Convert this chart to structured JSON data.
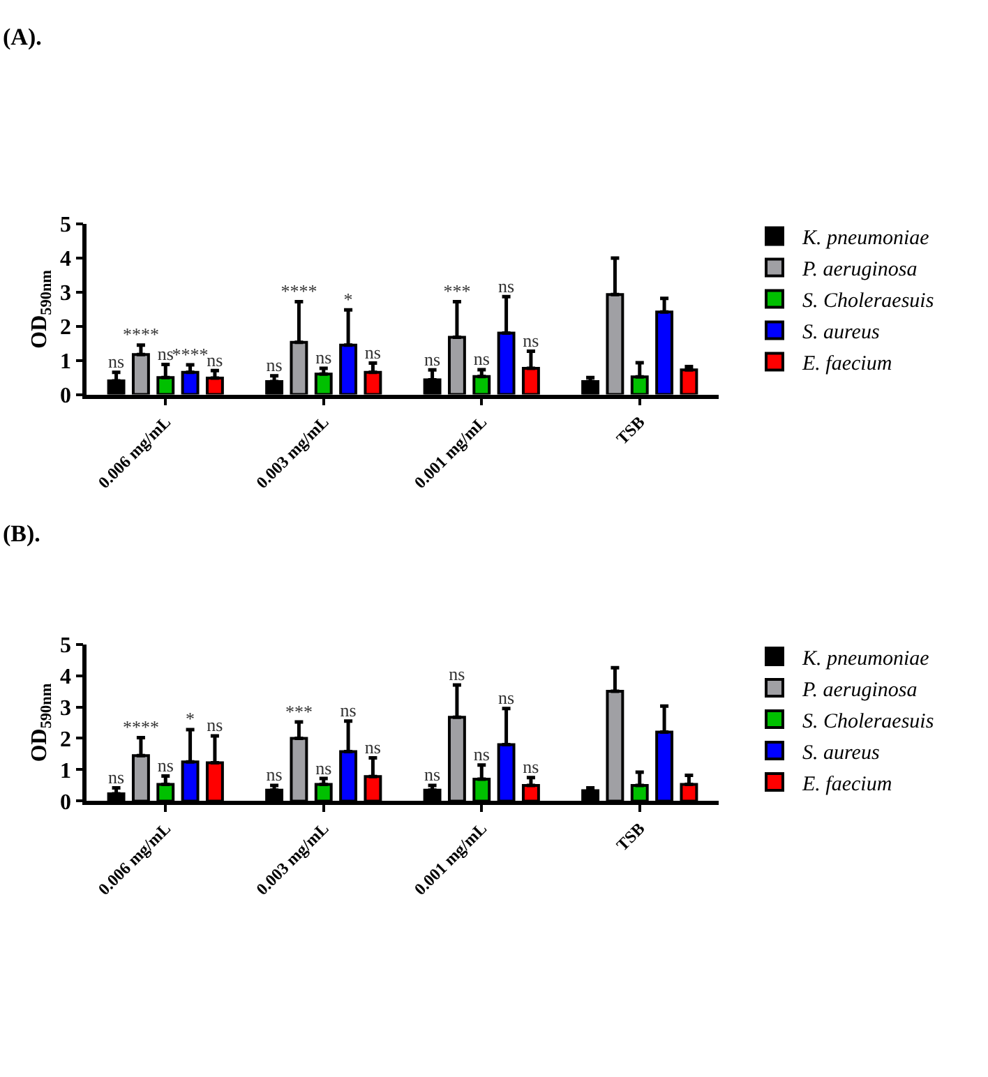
{
  "chart_data": [
    {
      "type": "bar",
      "title": "(A).",
      "ylabel": "OD$_{590nm}$",
      "categories": [
        "0.006 mg/mL",
        "0.003 mg/mL",
        "0.001 mg/mL",
        "TSB"
      ],
      "ylim": [
        0,
        5
      ],
      "yticks": [
        0,
        1,
        2,
        3,
        4,
        5
      ],
      "legend": "top right",
      "series": [
        {
          "name": "K. pneumoniae",
          "color": "#000000",
          "values": [
            0.4,
            0.38,
            0.43,
            0.38
          ],
          "errors": [
            [
              0.4,
              0.65
            ],
            [
              0.38,
              0.55
            ],
            [
              0.43,
              0.72
            ],
            [
              0.38,
              0.5
            ]
          ],
          "value_labels": [
            "ns",
            "ns",
            "ns",
            null
          ]
        },
        {
          "name": "P. aeruginosa",
          "color": "#a0a0a4",
          "values": [
            1.17,
            1.53,
            1.68,
            2.93
          ],
          "errors": [
            [
              1.17,
              1.45
            ],
            [
              1.53,
              2.72
            ],
            [
              1.68,
              2.72
            ],
            [
              2.93,
              4.0
            ]
          ],
          "value_labels": [
            "****",
            "****",
            "***",
            null
          ]
        },
        {
          "name": "S. Choleraesuis",
          "color": "#00c000",
          "values": [
            0.5,
            0.6,
            0.53,
            0.52
          ],
          "errors": [
            [
              0.5,
              0.88
            ],
            [
              0.6,
              0.77
            ],
            [
              0.53,
              0.73
            ],
            [
              0.52,
              0.93
            ]
          ],
          "value_labels": [
            "ns",
            "ns",
            "ns",
            null
          ]
        },
        {
          "name": "S. aureus",
          "color": "#0000ff",
          "values": [
            0.65,
            1.45,
            1.8,
            2.42
          ],
          "errors": [
            [
              0.65,
              0.87
            ],
            [
              1.45,
              2.48
            ],
            [
              1.8,
              2.87
            ],
            [
              2.42,
              2.82
            ]
          ],
          "value_labels": [
            "****",
            "*",
            "ns",
            null
          ]
        },
        {
          "name": "E. faecium",
          "color": "#ff0000",
          "values": [
            0.48,
            0.65,
            0.77,
            0.72
          ],
          "errors": [
            [
              0.48,
              0.7
            ],
            [
              0.65,
              0.92
            ],
            [
              0.77,
              1.27
            ],
            [
              0.72,
              0.82
            ]
          ],
          "value_labels": [
            "ns",
            "ns",
            "ns",
            null
          ]
        }
      ]
    },
    {
      "type": "bar",
      "title": "(B).",
      "ylabel": "OD$_{590nm}$",
      "categories": [
        "0.006 mg/mL",
        "0.003 mg/mL",
        "0.001 mg/mL",
        "TSB"
      ],
      "ylim": [
        0,
        5
      ],
      "yticks": [
        0,
        1,
        2,
        3,
        4,
        5
      ],
      "legend": "top right",
      "series": [
        {
          "name": "K. pneumoniae",
          "color": "#000000",
          "values": [
            0.23,
            0.35,
            0.35,
            0.33
          ],
          "errors": [
            [
              0.23,
              0.42
            ],
            [
              0.35,
              0.5
            ],
            [
              0.35,
              0.5
            ],
            [
              0.33,
              0.42
            ]
          ],
          "value_labels": [
            "ns",
            "ns",
            "ns",
            null
          ]
        },
        {
          "name": "P. aeruginosa",
          "color": "#a0a0a4",
          "values": [
            1.45,
            2.0,
            2.67,
            3.5
          ],
          "errors": [
            [
              1.45,
              2.02
            ],
            [
              2.0,
              2.52
            ],
            [
              2.67,
              3.7
            ],
            [
              3.5,
              4.25
            ]
          ],
          "value_labels": [
            "****",
            "***",
            "ns",
            null
          ]
        },
        {
          "name": "S. Choleraesuis",
          "color": "#00c000",
          "values": [
            0.53,
            0.53,
            0.7,
            0.5
          ],
          "errors": [
            [
              0.53,
              0.8
            ],
            [
              0.53,
              0.72
            ],
            [
              0.7,
              1.15
            ],
            [
              0.5,
              0.92
            ]
          ],
          "value_labels": [
            "ns",
            "ns",
            "ns",
            null
          ]
        },
        {
          "name": "S. aureus",
          "color": "#0000ff",
          "values": [
            1.25,
            1.58,
            1.8,
            2.2
          ],
          "errors": [
            [
              1.25,
              2.28
            ],
            [
              1.58,
              2.55
            ],
            [
              1.8,
              2.95
            ],
            [
              2.2,
              3.03
            ]
          ],
          "value_labels": [
            "*",
            "ns",
            "ns",
            null
          ]
        },
        {
          "name": "E. faecium",
          "color": "#ff0000",
          "values": [
            1.22,
            0.78,
            0.5,
            0.53
          ],
          "errors": [
            [
              1.22,
              2.08
            ],
            [
              0.78,
              1.38
            ],
            [
              0.5,
              0.75
            ],
            [
              0.53,
              0.82
            ]
          ],
          "value_labels": [
            "ns",
            "ns",
            "ns",
            null
          ]
        }
      ]
    }
  ]
}
